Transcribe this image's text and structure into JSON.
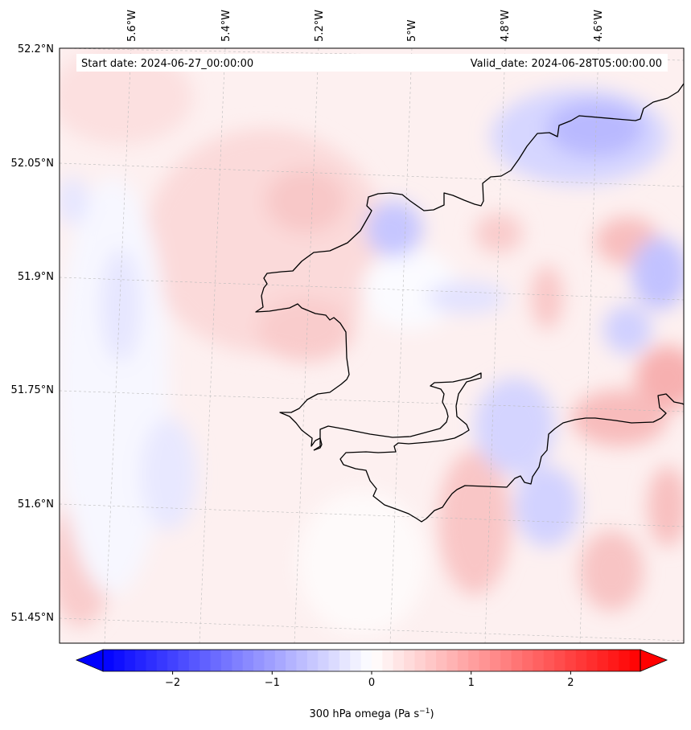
{
  "map": {
    "start_label": "Start date: 2024-06-27_00:00:00",
    "valid_label": "Valid_date: 2024-06-28T05:00:00.00",
    "longitude_ticks": [
      "5.6°W",
      "5.4°W",
      "5.2°W",
      "5°W",
      "4.8°W",
      "4.6°W"
    ],
    "latitude_ticks": [
      "52.2°N",
      "52.05°N",
      "51.9°N",
      "51.75°N",
      "51.6°N",
      "51.45°N"
    ],
    "extent": {
      "lon_min": -5.75,
      "lon_max": -4.45,
      "lat_min": 51.42,
      "lat_max": 52.2
    }
  },
  "colorbar": {
    "title": "300 hPa omega (Pa s",
    "title_sup": "−1",
    "title_end": ")",
    "ticks": [
      "−2",
      "−1",
      "0",
      "1",
      "2"
    ],
    "tick_values": [
      -2,
      -1,
      0,
      1,
      2
    ],
    "range": [
      -2.7,
      2.7
    ],
    "colors": {
      "low": "#0000ff",
      "mid": "#ffffff",
      "high": "#ff0000"
    }
  },
  "field": {
    "variable": "omega",
    "level": "300 hPa",
    "units": "Pa s-1"
  }
}
